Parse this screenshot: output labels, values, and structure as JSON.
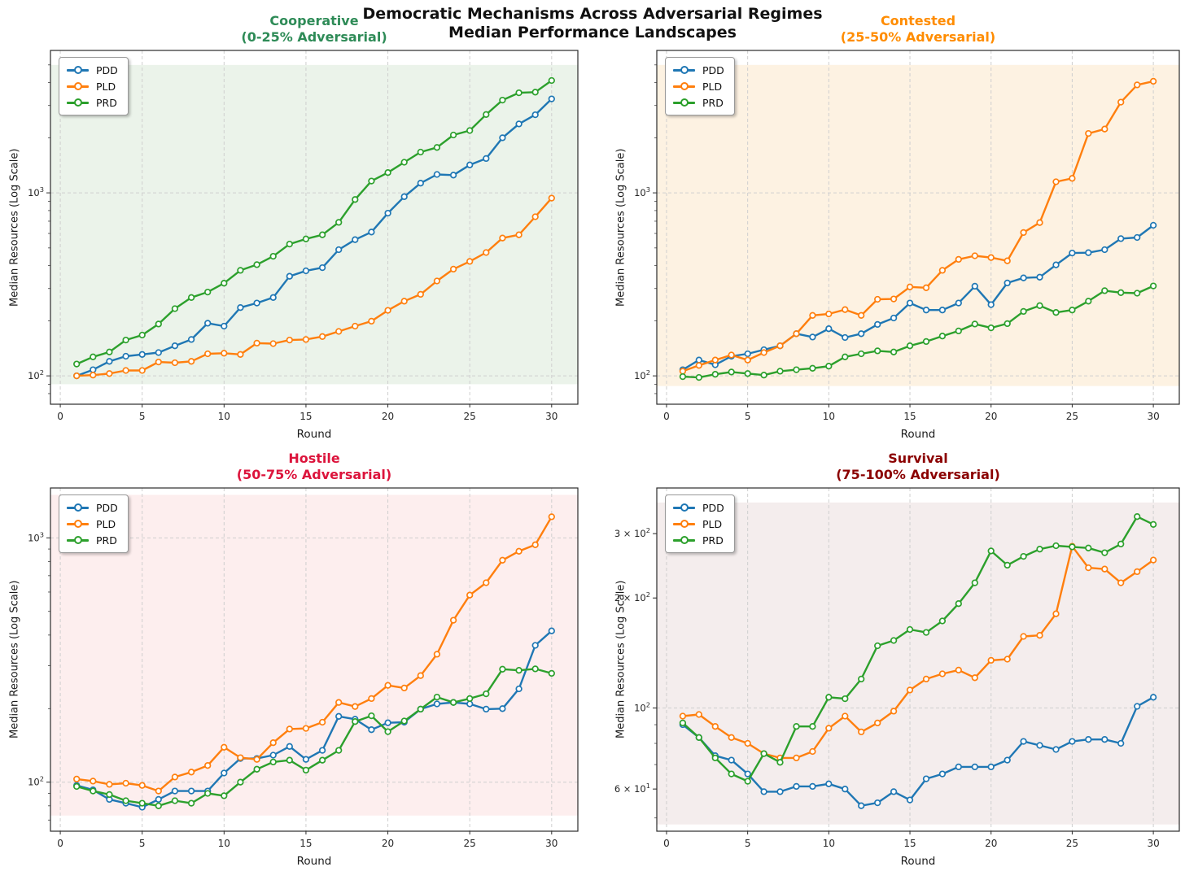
{
  "header": {
    "title_line1": "Democratic Mechanisms Across Adversarial Regimes",
    "title_line2": "Median Performance Landscapes"
  },
  "style_colors": {
    "grid": "#cfcfcf",
    "spine": "#2b2b2b",
    "tick_text": "#262626",
    "pdd_blue": "#1f77b4",
    "pld_orange": "#ff7f0e",
    "prd_green": "#2ca02c"
  },
  "chart_data": [
    {
      "id": "cooperative",
      "type": "line",
      "title_line1": "Cooperative",
      "title_line2": "(0-25% Adversarial)",
      "title_color": "#2e8b57",
      "xlabel": "Round",
      "ylabel": "Median Resources (Log Scale)",
      "xlim": [
        -0.6,
        31.6
      ],
      "ylim": [
        70,
        6000
      ],
      "xticks": [
        0,
        5,
        10,
        15,
        20,
        25,
        30
      ],
      "yticks": [
        {
          "value": 100,
          "label": "10^2",
          "grid": true
        },
        {
          "value": 1000,
          "label": "10^3",
          "grid": true
        }
      ],
      "band": [
        90,
        5000
      ],
      "band_color": "#ebf3ea",
      "x": [
        1,
        2,
        3,
        4,
        5,
        6,
        7,
        8,
        9,
        10,
        11,
        12,
        13,
        14,
        15,
        16,
        17,
        18,
        19,
        20,
        21,
        22,
        23,
        24,
        25,
        26,
        27,
        28,
        29,
        30
      ],
      "series": [
        {
          "name": "PDD",
          "color": "#1f77b4",
          "values": [
            100,
            108,
            120,
            128,
            131,
            134,
            146,
            158,
            194,
            187,
            236,
            250,
            268,
            350,
            375,
            390,
            489,
            555,
            611,
            774,
            953,
            1130,
            1260,
            1250,
            1420,
            1540,
            2000,
            2380,
            2670,
            3260
          ]
        },
        {
          "name": "PLD",
          "color": "#ff7f0e",
          "values": [
            100,
            101,
            103,
            107,
            107,
            119,
            118,
            120,
            132,
            133,
            131,
            151,
            150,
            157,
            158,
            164,
            175,
            187,
            199,
            228,
            256,
            279,
            330,
            383,
            422,
            472,
            566,
            590,
            740,
            936
          ]
        },
        {
          "name": "PRD",
          "color": "#2ca02c",
          "values": [
            116,
            127,
            135,
            157,
            167,
            192,
            233,
            268,
            287,
            321,
            377,
            405,
            450,
            525,
            560,
            590,
            690,
            920,
            1160,
            1290,
            1470,
            1670,
            1770,
            2070,
            2190,
            2680,
            3210,
            3520,
            3550,
            4110
          ]
        }
      ]
    },
    {
      "id": "contested",
      "type": "line",
      "title_line1": "Contested",
      "title_line2": "(25-50% Adversarial)",
      "title_color": "#ff8c00",
      "xlabel": "Round",
      "ylabel": "Median Resources (Log Scale)",
      "xlim": [
        -0.6,
        31.6
      ],
      "ylim": [
        70,
        6000
      ],
      "xticks": [
        0,
        5,
        10,
        15,
        20,
        25,
        30
      ],
      "yticks": [
        {
          "value": 100,
          "label": "10^2",
          "grid": true
        },
        {
          "value": 1000,
          "label": "10^3",
          "grid": true
        }
      ],
      "band": [
        88,
        5000
      ],
      "band_color": "#fdf2e2",
      "x": [
        1,
        2,
        3,
        4,
        5,
        6,
        7,
        8,
        9,
        10,
        11,
        12,
        13,
        14,
        15,
        16,
        17,
        18,
        19,
        20,
        21,
        22,
        23,
        24,
        25,
        26,
        27,
        28,
        29,
        30
      ],
      "series": [
        {
          "name": "PDD",
          "color": "#1f77b4",
          "values": [
            108,
            122,
            115,
            128,
            132,
            139,
            146,
            170,
            163,
            181,
            162,
            170,
            191,
            207,
            250,
            229,
            229,
            250,
            309,
            245,
            322,
            343,
            346,
            404,
            469,
            471,
            489,
            562,
            570,
            665
          ]
        },
        {
          "name": "PLD",
          "color": "#ff7f0e",
          "values": [
            106,
            114,
            122,
            130,
            122,
            134,
            146,
            170,
            214,
            218,
            230,
            214,
            262,
            263,
            306,
            303,
            377,
            433,
            453,
            443,
            425,
            607,
            688,
            1150,
            1200,
            2110,
            2230,
            3130,
            3890,
            4070
          ]
        },
        {
          "name": "PRD",
          "color": "#2ca02c",
          "values": [
            99,
            98,
            102,
            105,
            103,
            101,
            106,
            108,
            110,
            113,
            127,
            132,
            137,
            135,
            146,
            154,
            165,
            176,
            192,
            183,
            193,
            225,
            242,
            222,
            229,
            256,
            292,
            285,
            283,
            310
          ]
        }
      ]
    },
    {
      "id": "hostile",
      "type": "line",
      "title_line1": "Hostile",
      "title_line2": "(50-75% Adversarial)",
      "title_color": "#dc143c",
      "xlabel": "Round",
      "ylabel": "Median Resources (Log Scale)",
      "xlim": [
        -0.6,
        31.6
      ],
      "ylim": [
        63,
        1600
      ],
      "xticks": [
        0,
        5,
        10,
        15,
        20,
        25,
        30
      ],
      "yticks": [
        {
          "value": 100,
          "label": "10^2",
          "grid": true
        },
        {
          "value": 1000,
          "label": "10^3",
          "grid": true
        }
      ],
      "band": [
        73,
        1500
      ],
      "band_color": "#fdeeee",
      "x": [
        1,
        2,
        3,
        4,
        5,
        6,
        7,
        8,
        9,
        10,
        11,
        12,
        13,
        14,
        15,
        16,
        17,
        18,
        19,
        20,
        21,
        22,
        23,
        24,
        25,
        26,
        27,
        28,
        29,
        30
      ],
      "series": [
        {
          "name": "PDD",
          "color": "#1f77b4",
          "values": [
            97,
            93,
            85,
            82,
            79,
            85,
            92,
            92,
            92,
            109,
            125,
            125,
            129,
            140,
            124,
            135,
            186,
            181,
            164,
            175,
            176,
            199,
            209,
            212,
            209,
            199,
            200,
            241,
            363,
            416
          ]
        },
        {
          "name": "PLD",
          "color": "#ff7f0e",
          "values": [
            103,
            101,
            98,
            99,
            97,
            92,
            105,
            110,
            117,
            139,
            126,
            124,
            145,
            165,
            166,
            176,
            212,
            204,
            220,
            249,
            243,
            273,
            334,
            460,
            583,
            655,
            810,
            881,
            937,
            1220
          ]
        },
        {
          "name": "PRD",
          "color": "#2ca02c",
          "values": [
            96,
            92,
            89,
            84,
            82,
            80,
            84,
            82,
            90,
            88,
            100,
            113,
            121,
            123,
            112,
            123,
            135,
            177,
            187,
            161,
            178,
            199,
            223,
            212,
            220,
            230,
            290,
            287,
            291,
            279
          ]
        }
      ]
    },
    {
      "id": "survival",
      "type": "line",
      "title_line1": "Survival",
      "title_line2": "(75-100% Adversarial)",
      "title_color": "#8b0000",
      "xlabel": "Round",
      "ylabel": "Median Resources (Log Scale)",
      "xlim": [
        -0.6,
        31.6
      ],
      "ylim": [
        46,
        400
      ],
      "xticks": [
        0,
        5,
        10,
        15,
        20,
        25,
        30
      ],
      "yticks": [
        {
          "value": 60,
          "label": "6 × 10^1",
          "grid": false
        },
        {
          "value": 100,
          "label": "10^2",
          "grid": true
        },
        {
          "value": 200,
          "label": "2 × 10^2",
          "grid": false
        },
        {
          "value": 300,
          "label": "3 × 10^2",
          "grid": false
        }
      ],
      "band": [
        48,
        365
      ],
      "band_color": "#f4eded",
      "x": [
        1,
        2,
        3,
        4,
        5,
        6,
        7,
        8,
        9,
        10,
        11,
        12,
        13,
        14,
        15,
        16,
        17,
        18,
        19,
        20,
        21,
        22,
        23,
        24,
        25,
        26,
        27,
        28,
        29,
        30
      ],
      "series": [
        {
          "name": "PDD",
          "color": "#1f77b4",
          "values": [
            90,
            83,
            74,
            72,
            66,
            59,
            59,
            61,
            61,
            62,
            60,
            54,
            55,
            59,
            56,
            64,
            66,
            69,
            69,
            69,
            72,
            81,
            79,
            77,
            81,
            82,
            82,
            80,
            101,
            107
          ]
        },
        {
          "name": "PLD",
          "color": "#ff7f0e",
          "values": [
            95,
            96,
            89,
            83,
            80,
            75,
            73,
            73,
            76,
            88,
            95,
            86,
            91,
            98,
            112,
            120,
            124,
            127,
            121,
            135,
            136,
            157,
            158,
            181,
            277,
            242,
            240,
            220,
            236,
            254
          ]
        },
        {
          "name": "PRD",
          "color": "#2ca02c",
          "values": [
            91,
            83,
            73,
            66,
            63,
            75,
            71,
            89,
            89,
            107,
            106,
            120,
            148,
            153,
            164,
            161,
            173,
            193,
            220,
            269,
            246,
            260,
            272,
            278,
            276,
            274,
            266,
            281,
            334,
            318
          ]
        }
      ]
    }
  ]
}
